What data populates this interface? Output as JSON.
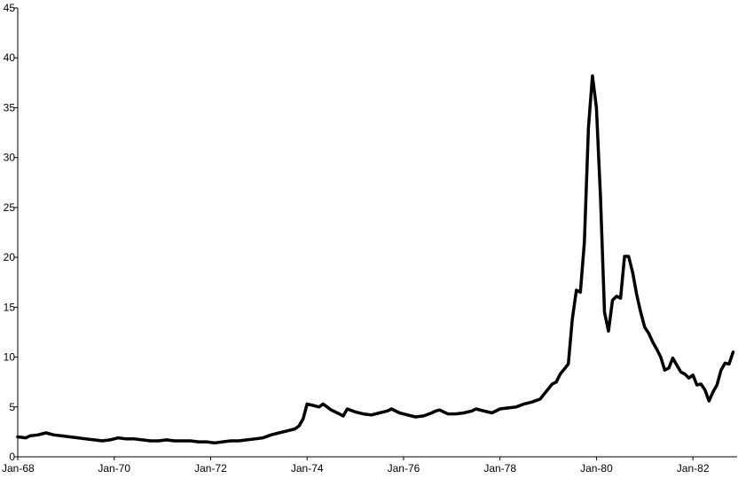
{
  "chart_data": {
    "type": "line",
    "title": "",
    "xlabel": "",
    "ylabel": "",
    "ylim": [
      0,
      45
    ],
    "xlim": [
      "1968-01",
      "1982-12"
    ],
    "grid": false,
    "legend": "none",
    "y_ticks": [
      0,
      5,
      10,
      15,
      20,
      25,
      30,
      35,
      40,
      45
    ],
    "x_ticks": [
      {
        "date": "1968-01",
        "label": "Jan-68"
      },
      {
        "date": "1970-01",
        "label": "Jan-70"
      },
      {
        "date": "1972-01",
        "label": "Jan-72"
      },
      {
        "date": "1974-01",
        "label": "Jan-74"
      },
      {
        "date": "1976-01",
        "label": "Jan-76"
      },
      {
        "date": "1978-01",
        "label": "Jan-78"
      },
      {
        "date": "1980-01",
        "label": "Jan-80"
      },
      {
        "date": "1982-01",
        "label": "Jan-82"
      }
    ],
    "series": [
      {
        "color": "#000000",
        "points": [
          [
            "1968-01",
            2.0
          ],
          [
            "1968-03",
            1.9
          ],
          [
            "1968-04",
            2.1
          ],
          [
            "1968-06",
            2.2
          ],
          [
            "1968-08",
            2.4
          ],
          [
            "1968-10",
            2.2
          ],
          [
            "1968-12",
            2.1
          ],
          [
            "1969-02",
            2.0
          ],
          [
            "1969-04",
            1.9
          ],
          [
            "1969-06",
            1.8
          ],
          [
            "1969-08",
            1.7
          ],
          [
            "1969-10",
            1.6
          ],
          [
            "1969-12",
            1.7
          ],
          [
            "1970-02",
            1.9
          ],
          [
            "1970-04",
            1.8
          ],
          [
            "1970-06",
            1.8
          ],
          [
            "1970-08",
            1.7
          ],
          [
            "1970-10",
            1.6
          ],
          [
            "1970-12",
            1.6
          ],
          [
            "1971-02",
            1.7
          ],
          [
            "1971-04",
            1.6
          ],
          [
            "1971-06",
            1.6
          ],
          [
            "1971-08",
            1.6
          ],
          [
            "1971-10",
            1.5
          ],
          [
            "1971-12",
            1.5
          ],
          [
            "1972-02",
            1.4
          ],
          [
            "1972-04",
            1.5
          ],
          [
            "1972-06",
            1.6
          ],
          [
            "1972-08",
            1.6
          ],
          [
            "1972-10",
            1.7
          ],
          [
            "1972-12",
            1.8
          ],
          [
            "1973-02",
            1.9
          ],
          [
            "1973-04",
            2.2
          ],
          [
            "1973-06",
            2.4
          ],
          [
            "1973-08",
            2.6
          ],
          [
            "1973-10",
            2.8
          ],
          [
            "1973-11",
            3.1
          ],
          [
            "1973-12",
            3.8
          ],
          [
            "1974-01",
            5.3
          ],
          [
            "1974-02",
            5.2
          ],
          [
            "1974-04",
            5.0
          ],
          [
            "1974-05",
            5.3
          ],
          [
            "1974-07",
            4.7
          ],
          [
            "1974-09",
            4.3
          ],
          [
            "1974-10",
            4.1
          ],
          [
            "1974-11",
            4.8
          ],
          [
            "1975-01",
            4.5
          ],
          [
            "1975-03",
            4.3
          ],
          [
            "1975-05",
            4.2
          ],
          [
            "1975-07",
            4.4
          ],
          [
            "1975-09",
            4.6
          ],
          [
            "1975-10",
            4.8
          ],
          [
            "1975-12",
            4.4
          ],
          [
            "1976-02",
            4.2
          ],
          [
            "1976-04",
            4.0
          ],
          [
            "1976-06",
            4.1
          ],
          [
            "1976-08",
            4.4
          ],
          [
            "1976-09",
            4.6
          ],
          [
            "1976-10",
            4.7
          ],
          [
            "1976-12",
            4.3
          ],
          [
            "1977-02",
            4.3
          ],
          [
            "1977-04",
            4.4
          ],
          [
            "1977-06",
            4.6
          ],
          [
            "1977-07",
            4.8
          ],
          [
            "1977-09",
            4.6
          ],
          [
            "1977-11",
            4.4
          ],
          [
            "1978-01",
            4.8
          ],
          [
            "1978-03",
            4.9
          ],
          [
            "1978-05",
            5.0
          ],
          [
            "1978-07",
            5.3
          ],
          [
            "1978-09",
            5.5
          ],
          [
            "1978-11",
            5.8
          ],
          [
            "1978-12",
            6.3
          ],
          [
            "1979-02",
            7.3
          ],
          [
            "1979-03",
            7.5
          ],
          [
            "1979-04",
            8.3
          ],
          [
            "1979-05",
            8.8
          ],
          [
            "1979-06",
            9.3
          ],
          [
            "1979-07",
            13.8
          ],
          [
            "1979-08",
            16.7
          ],
          [
            "1979-09",
            16.5
          ],
          [
            "1979-10",
            21.5
          ],
          [
            "1979-11",
            33.0
          ],
          [
            "1979-12",
            38.2
          ],
          [
            "1980-01",
            35.0
          ],
          [
            "1980-02",
            26.0
          ],
          [
            "1980-03",
            14.5
          ],
          [
            "1980-04",
            12.6
          ],
          [
            "1980-05",
            15.7
          ],
          [
            "1980-06",
            16.1
          ],
          [
            "1980-07",
            15.9
          ],
          [
            "1980-08",
            20.1
          ],
          [
            "1980-09",
            20.1
          ],
          [
            "1980-10",
            18.5
          ],
          [
            "1980-11",
            16.3
          ],
          [
            "1980-12",
            14.5
          ],
          [
            "1981-01",
            13.0
          ],
          [
            "1981-02",
            12.4
          ],
          [
            "1981-03",
            11.5
          ],
          [
            "1981-04",
            10.8
          ],
          [
            "1981-05",
            10.0
          ],
          [
            "1981-06",
            8.7
          ],
          [
            "1981-07",
            8.9
          ],
          [
            "1981-08",
            9.9
          ],
          [
            "1981-09",
            9.2
          ],
          [
            "1981-10",
            8.5
          ],
          [
            "1981-11",
            8.3
          ],
          [
            "1981-12",
            7.9
          ],
          [
            "1982-01",
            8.2
          ],
          [
            "1982-02",
            7.2
          ],
          [
            "1982-03",
            7.3
          ],
          [
            "1982-04",
            6.7
          ],
          [
            "1982-05",
            5.6
          ],
          [
            "1982-06",
            6.5
          ],
          [
            "1982-07",
            7.2
          ],
          [
            "1982-08",
            8.7
          ],
          [
            "1982-09",
            9.4
          ],
          [
            "1982-10",
            9.3
          ],
          [
            "1982-11",
            10.5
          ]
        ]
      }
    ]
  }
}
